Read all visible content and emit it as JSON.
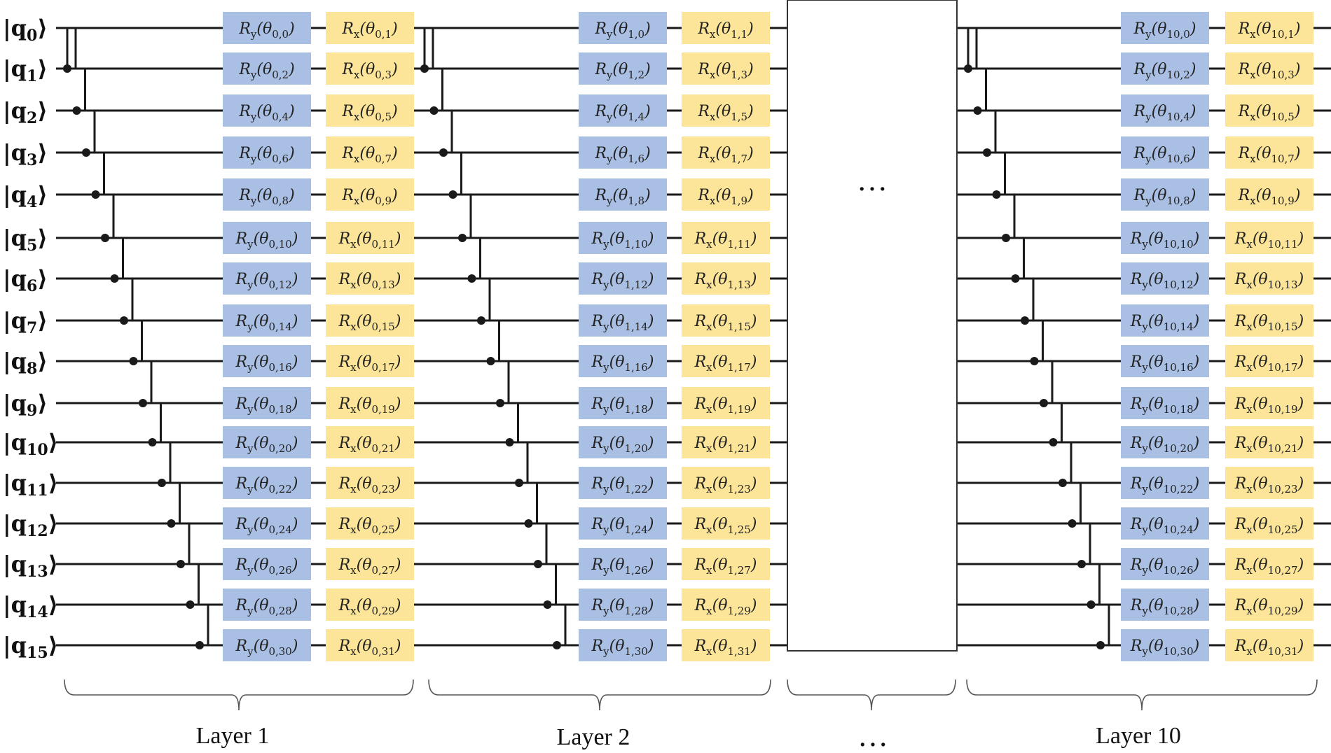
{
  "circuit": {
    "qubit_labels": [
      "|q0⟩",
      "|q1⟩",
      "|q2⟩",
      "|q3⟩",
      "|q4⟩",
      "|q5⟩",
      "|q6⟩",
      "|q7⟩",
      "|q8⟩",
      "|q9⟩",
      "|q10⟩",
      "|q11⟩",
      "|q12⟩",
      "|q13⟩",
      "|q14⟩",
      "|q15⟩"
    ],
    "layers": [
      {
        "label": "Layer 1",
        "ry_gates": [
          "Ry(θ0,0)",
          "Ry(θ0,2)",
          "Ry(θ0,4)",
          "Ry(θ0,6)",
          "Ry(θ0,8)",
          "Ry(θ0,10)",
          "Ry(θ0,12)",
          "Ry(θ0,14)",
          "Ry(θ0,16)",
          "Ry(θ0,18)",
          "Ry(θ0,20)",
          "Ry(θ0,22)",
          "Ry(θ0,24)",
          "Ry(θ0,26)",
          "Ry(θ0,28)",
          "Ry(θ0,30)"
        ],
        "rx_gates": [
          "Rx(θ0,1)",
          "Rx(θ0,3)",
          "Rx(θ0,5)",
          "Rx(θ0,7)",
          "Rx(θ0,9)",
          "Rx(θ0,11)",
          "Rx(θ0,13)",
          "Rx(θ0,15)",
          "Rx(θ0,17)",
          "Rx(θ0,19)",
          "Rx(θ0,21)",
          "Rx(θ0,23)",
          "Rx(θ0,25)",
          "Rx(θ0,27)",
          "Rx(θ0,29)",
          "Rx(θ0,31)"
        ]
      },
      {
        "label": "Layer 2",
        "ry_gates": [
          "Ry(θ1,0)",
          "Ry(θ1,2)",
          "Ry(θ1,4)",
          "Ry(θ1,6)",
          "Ry(θ1,8)",
          "Ry(θ1,10)",
          "Ry(θ1,12)",
          "Ry(θ1,14)",
          "Ry(θ1,16)",
          "Ry(θ1,18)",
          "Ry(θ1,20)",
          "Ry(θ1,22)",
          "Ry(θ1,24)",
          "Ry(θ1,26)",
          "Ry(θ1,28)",
          "Ry(θ1,30)"
        ],
        "rx_gates": [
          "Rx(θ1,1)",
          "Rx(θ1,3)",
          "Rx(θ1,5)",
          "Rx(θ1,7)",
          "Rx(θ1,9)",
          "Rx(θ1,11)",
          "Rx(θ1,13)",
          "Rx(θ1,15)",
          "Rx(θ1,17)",
          "Rx(θ1,19)",
          "Rx(θ1,21)",
          "Rx(θ1,23)",
          "Rx(θ1,25)",
          "Rx(θ1,27)",
          "Rx(θ1,29)",
          "Rx(θ1,31)"
        ]
      },
      {
        "label": "Layer 10",
        "ry_gates": [
          "Ry(θ10,0)",
          "Ry(θ10,2)",
          "Ry(θ10,4)",
          "Ry(θ10,6)",
          "Ry(θ10,8)",
          "Ry(θ10,10)",
          "Ry(θ10,12)",
          "Ry(θ10,14)",
          "Ry(θ10,16)",
          "Ry(θ10,18)",
          "Ry(θ10,20)",
          "Ry(θ10,22)",
          "Ry(θ10,24)",
          "Ry(θ10,26)",
          "Ry(θ10,28)",
          "Ry(θ10,30)"
        ],
        "rx_gates": [
          "Rx(θ10,1)",
          "Rx(θ10,3)",
          "Rx(θ10,5)",
          "Rx(θ10,7)",
          "Rx(θ10,9)",
          "Rx(θ10,11)",
          "Rx(θ10,13)",
          "Rx(θ10,15)",
          "Rx(θ10,17)",
          "Rx(θ10,19)",
          "Rx(θ10,21)",
          "Rx(θ10,23)",
          "Rx(θ10,25)",
          "Rx(θ10,27)",
          "Rx(θ10,29)",
          "Rx(θ10,31)"
        ]
      }
    ],
    "ellipsis_box_text": "…",
    "ellipsis_layer_label": "…",
    "colors": {
      "ry_fill": "#a9bfe4",
      "rx_fill": "#fce598",
      "wire": "#1a1a1a",
      "brace": "#555555"
    }
  }
}
